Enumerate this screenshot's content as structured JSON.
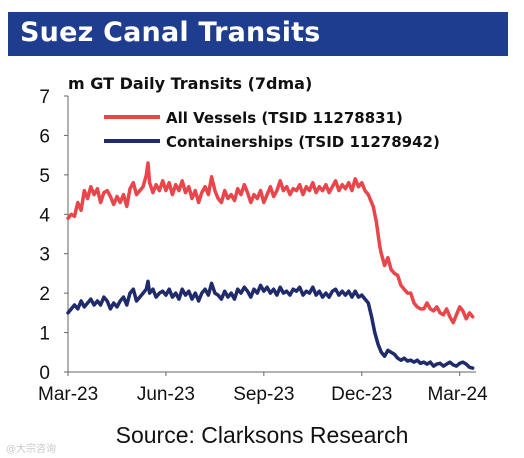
{
  "header": {
    "title": "Suez Canal Transits"
  },
  "source": "Source: Clarksons Research",
  "watermark": "@大宗咨询",
  "chart_data": {
    "type": "line",
    "ylabel": "m GT Daily Transits (7dma)",
    "ylim": [
      0,
      7
    ],
    "yticks": [
      0,
      1,
      2,
      3,
      4,
      5,
      6,
      7
    ],
    "x_ticks": [
      "Mar-23",
      "Jun-23",
      "Sep-23",
      "Dec-23",
      "Mar-24"
    ],
    "x_tick_months": [
      0,
      3,
      6,
      9,
      12
    ],
    "xlim_months": [
      0,
      12.5
    ],
    "grid": false,
    "legend_position": "top",
    "series": [
      {
        "name": "All Vessels (TSID 11278831)",
        "color": "#e8464b",
        "points": [
          [
            0.0,
            3.9
          ],
          [
            0.1,
            4.0
          ],
          [
            0.2,
            3.95
          ],
          [
            0.3,
            4.3
          ],
          [
            0.4,
            4.1
          ],
          [
            0.5,
            4.6
          ],
          [
            0.6,
            4.4
          ],
          [
            0.7,
            4.7
          ],
          [
            0.8,
            4.5
          ],
          [
            0.9,
            4.65
          ],
          [
            1.0,
            4.3
          ],
          [
            1.1,
            4.55
          ],
          [
            1.2,
            4.6
          ],
          [
            1.3,
            4.45
          ],
          [
            1.4,
            4.25
          ],
          [
            1.5,
            4.45
          ],
          [
            1.6,
            4.3
          ],
          [
            1.7,
            4.5
          ],
          [
            1.8,
            4.2
          ],
          [
            1.9,
            4.65
          ],
          [
            2.0,
            4.8
          ],
          [
            2.1,
            4.5
          ],
          [
            2.2,
            4.6
          ],
          [
            2.3,
            4.7
          ],
          [
            2.4,
            5.0
          ],
          [
            2.45,
            5.3
          ],
          [
            2.5,
            4.8
          ],
          [
            2.6,
            4.55
          ],
          [
            2.7,
            4.75
          ],
          [
            2.8,
            4.6
          ],
          [
            2.9,
            4.85
          ],
          [
            3.0,
            4.6
          ],
          [
            3.1,
            4.8
          ],
          [
            3.2,
            4.5
          ],
          [
            3.3,
            4.75
          ],
          [
            3.4,
            4.6
          ],
          [
            3.5,
            4.85
          ],
          [
            3.6,
            4.55
          ],
          [
            3.7,
            4.7
          ],
          [
            3.8,
            4.4
          ],
          [
            3.9,
            4.6
          ],
          [
            4.0,
            4.3
          ],
          [
            4.1,
            4.55
          ],
          [
            4.2,
            4.7
          ],
          [
            4.3,
            4.5
          ],
          [
            4.4,
            4.95
          ],
          [
            4.5,
            4.6
          ],
          [
            4.6,
            4.4
          ],
          [
            4.7,
            4.3
          ],
          [
            4.8,
            4.6
          ],
          [
            4.9,
            4.4
          ],
          [
            5.0,
            4.5
          ],
          [
            5.1,
            4.35
          ],
          [
            5.2,
            4.65
          ],
          [
            5.3,
            4.5
          ],
          [
            5.4,
            4.75
          ],
          [
            5.5,
            4.55
          ],
          [
            5.6,
            4.3
          ],
          [
            5.7,
            4.5
          ],
          [
            5.8,
            4.4
          ],
          [
            5.9,
            4.6
          ],
          [
            6.0,
            4.3
          ],
          [
            6.1,
            4.5
          ],
          [
            6.2,
            4.7
          ],
          [
            6.3,
            4.45
          ],
          [
            6.4,
            4.6
          ],
          [
            6.5,
            4.85
          ],
          [
            6.6,
            4.6
          ],
          [
            6.7,
            4.7
          ],
          [
            6.8,
            4.5
          ],
          [
            6.9,
            4.65
          ],
          [
            7.0,
            4.6
          ],
          [
            7.1,
            4.75
          ],
          [
            7.2,
            4.5
          ],
          [
            7.3,
            4.7
          ],
          [
            7.4,
            4.6
          ],
          [
            7.5,
            4.8
          ],
          [
            7.6,
            4.55
          ],
          [
            7.7,
            4.7
          ],
          [
            7.8,
            4.6
          ],
          [
            7.9,
            4.75
          ],
          [
            8.0,
            4.55
          ],
          [
            8.1,
            4.7
          ],
          [
            8.2,
            4.85
          ],
          [
            8.3,
            4.6
          ],
          [
            8.4,
            4.75
          ],
          [
            8.5,
            4.65
          ],
          [
            8.6,
            4.8
          ],
          [
            8.7,
            4.6
          ],
          [
            8.8,
            4.9
          ],
          [
            8.9,
            4.7
          ],
          [
            9.0,
            4.8
          ],
          [
            9.1,
            4.6
          ],
          [
            9.2,
            4.5
          ],
          [
            9.25,
            4.4
          ],
          [
            9.35,
            4.2
          ],
          [
            9.45,
            3.8
          ],
          [
            9.55,
            3.2
          ],
          [
            9.6,
            3.0
          ],
          [
            9.7,
            2.7
          ],
          [
            9.8,
            2.9
          ],
          [
            9.9,
            2.6
          ],
          [
            10.0,
            2.5
          ],
          [
            10.1,
            2.45
          ],
          [
            10.2,
            2.2
          ],
          [
            10.3,
            2.1
          ],
          [
            10.4,
            2.0
          ],
          [
            10.5,
            2.0
          ],
          [
            10.6,
            1.75
          ],
          [
            10.7,
            1.65
          ],
          [
            10.8,
            1.6
          ],
          [
            10.9,
            1.6
          ],
          [
            11.0,
            1.75
          ],
          [
            11.1,
            1.6
          ],
          [
            11.2,
            1.55
          ],
          [
            11.3,
            1.65
          ],
          [
            11.4,
            1.5
          ],
          [
            11.5,
            1.45
          ],
          [
            11.6,
            1.6
          ],
          [
            11.7,
            1.4
          ],
          [
            11.8,
            1.25
          ],
          [
            11.9,
            1.45
          ],
          [
            12.0,
            1.65
          ],
          [
            12.1,
            1.55
          ],
          [
            12.2,
            1.35
          ],
          [
            12.3,
            1.5
          ],
          [
            12.4,
            1.4
          ]
        ]
      },
      {
        "name": "Containerships (TSID 11278942)",
        "color": "#1f2b6b",
        "points": [
          [
            0.0,
            1.5
          ],
          [
            0.1,
            1.6
          ],
          [
            0.2,
            1.7
          ],
          [
            0.3,
            1.6
          ],
          [
            0.4,
            1.8
          ],
          [
            0.5,
            1.65
          ],
          [
            0.6,
            1.75
          ],
          [
            0.7,
            1.85
          ],
          [
            0.8,
            1.7
          ],
          [
            0.9,
            1.8
          ],
          [
            1.0,
            1.7
          ],
          [
            1.1,
            1.9
          ],
          [
            1.2,
            1.8
          ],
          [
            1.3,
            1.6
          ],
          [
            1.4,
            1.75
          ],
          [
            1.5,
            1.65
          ],
          [
            1.6,
            1.8
          ],
          [
            1.7,
            1.9
          ],
          [
            1.8,
            1.7
          ],
          [
            1.9,
            2.0
          ],
          [
            2.0,
            2.1
          ],
          [
            2.1,
            1.8
          ],
          [
            2.2,
            1.9
          ],
          [
            2.3,
            2.0
          ],
          [
            2.4,
            2.1
          ],
          [
            2.45,
            2.3
          ],
          [
            2.5,
            2.0
          ],
          [
            2.6,
            2.1
          ],
          [
            2.7,
            1.9
          ],
          [
            2.8,
            2.0
          ],
          [
            2.9,
            2.05
          ],
          [
            3.0,
            1.95
          ],
          [
            3.1,
            2.1
          ],
          [
            3.2,
            1.9
          ],
          [
            3.3,
            2.0
          ],
          [
            3.4,
            1.85
          ],
          [
            3.5,
            2.1
          ],
          [
            3.6,
            1.95
          ],
          [
            3.7,
            2.05
          ],
          [
            3.8,
            1.85
          ],
          [
            3.9,
            2.0
          ],
          [
            4.0,
            1.8
          ],
          [
            4.1,
            2.0
          ],
          [
            4.2,
            2.1
          ],
          [
            4.3,
            1.95
          ],
          [
            4.4,
            2.25
          ],
          [
            4.5,
            2.0
          ],
          [
            4.6,
            1.95
          ],
          [
            4.7,
            1.85
          ],
          [
            4.8,
            2.05
          ],
          [
            4.9,
            1.9
          ],
          [
            5.0,
            2.0
          ],
          [
            5.1,
            1.85
          ],
          [
            5.2,
            2.1
          ],
          [
            5.3,
            2.0
          ],
          [
            5.4,
            2.15
          ],
          [
            5.5,
            2.05
          ],
          [
            5.6,
            1.9
          ],
          [
            5.7,
            2.1
          ],
          [
            5.8,
            2.0
          ],
          [
            5.9,
            2.2
          ],
          [
            6.0,
            2.05
          ],
          [
            6.1,
            2.15
          ],
          [
            6.2,
            2.0
          ],
          [
            6.3,
            2.1
          ],
          [
            6.4,
            1.95
          ],
          [
            6.5,
            2.15
          ],
          [
            6.6,
            2.0
          ],
          [
            6.7,
            2.05
          ],
          [
            6.8,
            1.95
          ],
          [
            6.9,
            2.1
          ],
          [
            7.0,
            2.05
          ],
          [
            7.1,
            2.15
          ],
          [
            7.2,
            1.95
          ],
          [
            7.3,
            2.05
          ],
          [
            7.4,
            2.0
          ],
          [
            7.5,
            2.15
          ],
          [
            7.6,
            1.95
          ],
          [
            7.7,
            2.05
          ],
          [
            7.8,
            1.9
          ],
          [
            7.9,
            2.0
          ],
          [
            8.0,
            1.9
          ],
          [
            8.1,
            2.05
          ],
          [
            8.2,
            2.1
          ],
          [
            8.3,
            1.95
          ],
          [
            8.4,
            2.05
          ],
          [
            8.5,
            1.95
          ],
          [
            8.6,
            2.05
          ],
          [
            8.7,
            1.9
          ],
          [
            8.8,
            2.05
          ],
          [
            8.9,
            1.9
          ],
          [
            9.0,
            1.95
          ],
          [
            9.1,
            1.85
          ],
          [
            9.2,
            1.75
          ],
          [
            9.3,
            1.4
          ],
          [
            9.4,
            1.0
          ],
          [
            9.5,
            0.7
          ],
          [
            9.6,
            0.5
          ],
          [
            9.7,
            0.4
          ],
          [
            9.8,
            0.55
          ],
          [
            9.9,
            0.5
          ],
          [
            10.0,
            0.45
          ],
          [
            10.1,
            0.35
          ],
          [
            10.2,
            0.3
          ],
          [
            10.3,
            0.35
          ],
          [
            10.4,
            0.28
          ],
          [
            10.5,
            0.3
          ],
          [
            10.6,
            0.25
          ],
          [
            10.7,
            0.3
          ],
          [
            10.8,
            0.22
          ],
          [
            10.9,
            0.25
          ],
          [
            11.0,
            0.2
          ],
          [
            11.1,
            0.25
          ],
          [
            11.2,
            0.15
          ],
          [
            11.3,
            0.2
          ],
          [
            11.4,
            0.22
          ],
          [
            11.5,
            0.15
          ],
          [
            11.6,
            0.2
          ],
          [
            11.7,
            0.25
          ],
          [
            11.8,
            0.18
          ],
          [
            11.9,
            0.15
          ],
          [
            12.0,
            0.22
          ],
          [
            12.1,
            0.25
          ],
          [
            12.2,
            0.2
          ],
          [
            12.3,
            0.12
          ],
          [
            12.4,
            0.1
          ]
        ]
      }
    ]
  }
}
